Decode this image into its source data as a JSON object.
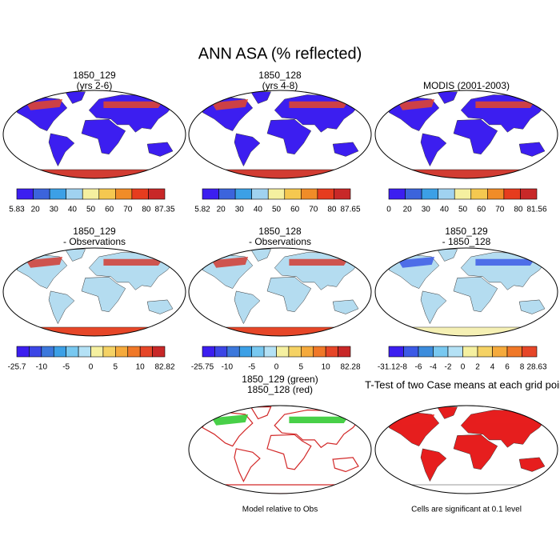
{
  "title": "ANN ASA (% reflected)",
  "panels": [
    {
      "title": [
        "1850_129",
        "(yrs 2-6)"
      ],
      "colorbar": {
        "colors": [
          "#3c1ef0",
          "#3c64dc",
          "#3ca0e6",
          "#a0d2f0",
          "#f5f0a0",
          "#f5c850",
          "#f08c28",
          "#e63c1e",
          "#c82828"
        ],
        "labels": [
          "5.83",
          "20",
          "30",
          "40",
          "50",
          "60",
          "70",
          "80",
          "87.35"
        ]
      }
    },
    {
      "title": [
        "1850_128",
        "(yrs 4-8)"
      ],
      "colorbar": {
        "colors": [
          "#3c1ef0",
          "#3c64dc",
          "#3ca0e6",
          "#a0d2f0",
          "#f5f0a0",
          "#f5c850",
          "#f08c28",
          "#e63c1e",
          "#c82828"
        ],
        "labels": [
          "5.82",
          "20",
          "30",
          "40",
          "50",
          "60",
          "70",
          "80",
          "87.65"
        ]
      }
    },
    {
      "title": [
        "MODIS (2001-2003)"
      ],
      "colorbar": {
        "colors": [
          "#3c1ef0",
          "#3c64dc",
          "#3ca0e6",
          "#a0d2f0",
          "#f5f0a0",
          "#f5c850",
          "#f08c28",
          "#e63c1e",
          "#c82828"
        ],
        "labels": [
          "0",
          "20",
          "30",
          "40",
          "50",
          "60",
          "70",
          "80",
          "81.56"
        ]
      }
    },
    {
      "title": [
        "1850_129",
        "- Observations"
      ],
      "colorbar": {
        "colors": [
          "#3c1ef0",
          "#3c46e6",
          "#3c78dc",
          "#3ca0e6",
          "#78c8f0",
          "#b4e1f5",
          "#f5f0a0",
          "#f5d264",
          "#f5aa3c",
          "#f07828",
          "#e64628",
          "#c82828"
        ],
        "labels": [
          "-25.7",
          null,
          "-10",
          null,
          "-5",
          null,
          "0",
          null,
          "5",
          null,
          "10",
          null,
          "82.82"
        ]
      }
    },
    {
      "title": [
        "1850_128",
        "- Observations"
      ],
      "colorbar": {
        "colors": [
          "#3c1ef0",
          "#3c46e6",
          "#3c78dc",
          "#3ca0e6",
          "#78c8f0",
          "#b4e1f5",
          "#f5f0a0",
          "#f5d264",
          "#f5aa3c",
          "#f07828",
          "#e64628",
          "#c82828"
        ],
        "labels": [
          "-25.75",
          null,
          "-10",
          null,
          "-5",
          null,
          "0",
          null,
          "5",
          null,
          "10",
          null,
          "82.28"
        ]
      }
    },
    {
      "title": [
        "1850_129",
        "- 1850_128"
      ],
      "colorbar": {
        "colors": [
          "#3c1ef0",
          "#3c5ae6",
          "#3c8cdc",
          "#78c8f0",
          "#b4e1f5",
          "#f5f0a0",
          "#f5d264",
          "#f5aa3c",
          "#f07828",
          "#e64628"
        ],
        "labels": [
          "-31.12",
          "-8",
          "-6",
          "-4",
          "-2",
          "0",
          "2",
          "4",
          "6",
          "8",
          "28.63"
        ]
      }
    },
    {
      "title": [
        "1850_129 (green)",
        "1850_128 (red)"
      ],
      "caption": "Model relative to Obs"
    },
    {
      "title": [
        "T-Test of two Case means at each grid point"
      ],
      "caption": "Cells are significant at 0.1 level"
    }
  ]
}
